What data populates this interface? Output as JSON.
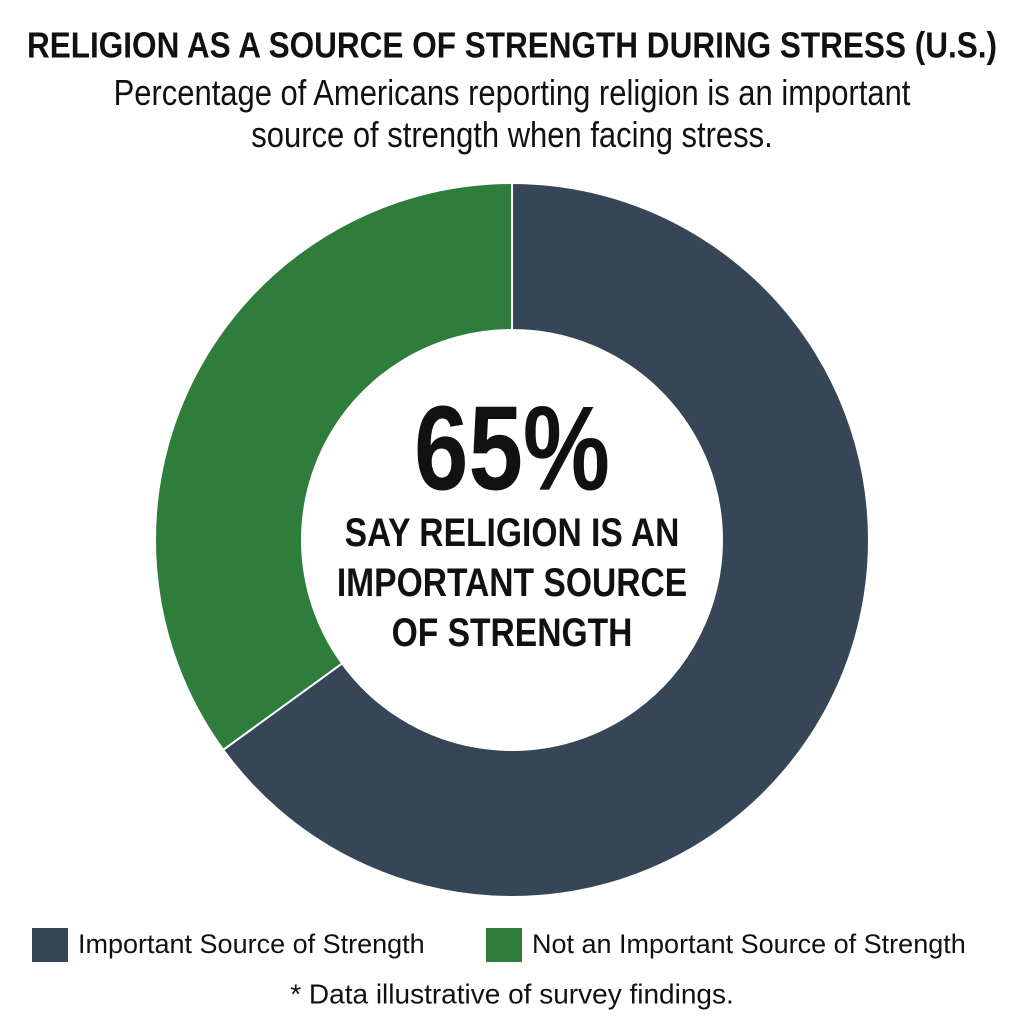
{
  "chart_data": {
    "type": "pie",
    "title": "RELIGION AS A SOURCE OF STRENGTH DURING STRESS (U.S.)",
    "subtitle": "Percentage of Americans reporting religion is an important source of strength when facing stress.",
    "categories": [
      "Important Source of Strength",
      "Not an Important Source of Strength"
    ],
    "values": [
      65,
      35
    ],
    "value_labels": [
      "65%",
      null
    ],
    "colors": [
      "#374657",
      "#2e7d3a"
    ],
    "center_annotation": "SAY RELIGION IS AN IMPORTANT SOURCE OF STRENGTH",
    "footnote": "* Data illustrative of survey findings."
  }
}
